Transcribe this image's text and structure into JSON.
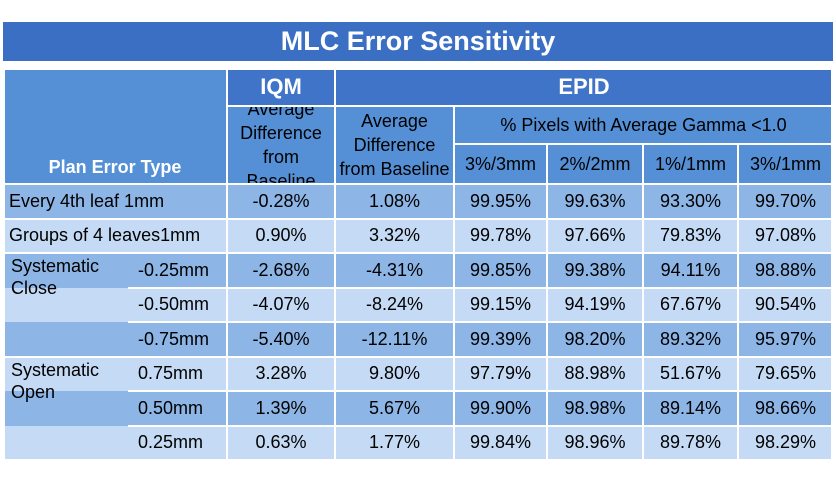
{
  "chart_data": {
    "type": "table",
    "title": "MLC Error Sensitivity",
    "group_headers": {
      "iqm": "IQM",
      "epid": "EPID"
    },
    "row_header": "Plan Error Type",
    "column_headers": {
      "iqm_avg": "Average Difference from Baseline",
      "epid_avg": "Average Difference from Baseline",
      "gamma_group": "% Pixels with Average Gamma <1.0",
      "gamma_cols": [
        "3%/3mm",
        "2%/2mm",
        "1%/1mm",
        "3%/1mm"
      ]
    },
    "row_groups": {
      "close": "Systematic Close",
      "open": "Systematic Open"
    },
    "rows": [
      {
        "label": "Every 4th leaf 1mm",
        "sub": "",
        "values": [
          "-0.28%",
          "1.08%",
          "99.95%",
          "99.63%",
          "93.30%",
          "99.70%"
        ]
      },
      {
        "label": "Groups of 4 leaves1mm",
        "sub": "",
        "values": [
          "0.90%",
          "3.32%",
          "99.78%",
          "97.66%",
          "79.83%",
          "97.08%"
        ]
      },
      {
        "label": "",
        "sub": "-0.25mm",
        "values": [
          "-2.68%",
          "-4.31%",
          "99.85%",
          "99.38%",
          "94.11%",
          "98.88%"
        ]
      },
      {
        "label": "",
        "sub": "-0.50mm",
        "values": [
          "-4.07%",
          "-8.24%",
          "99.15%",
          "94.19%",
          "67.67%",
          "90.54%"
        ]
      },
      {
        "label": "",
        "sub": "-0.75mm",
        "values": [
          "-5.40%",
          "-12.11%",
          "99.39%",
          "98.20%",
          "89.32%",
          "95.97%"
        ]
      },
      {
        "label": "",
        "sub": "0.75mm",
        "values": [
          "3.28%",
          "9.80%",
          "97.79%",
          "88.98%",
          "51.67%",
          "79.65%"
        ]
      },
      {
        "label": "",
        "sub": "0.50mm",
        "values": [
          "1.39%",
          "5.67%",
          "99.90%",
          "98.98%",
          "89.14%",
          "98.66%"
        ]
      },
      {
        "label": "",
        "sub": "0.25mm",
        "values": [
          "0.63%",
          "1.77%",
          "99.84%",
          "98.96%",
          "89.78%",
          "98.29%"
        ]
      }
    ]
  }
}
